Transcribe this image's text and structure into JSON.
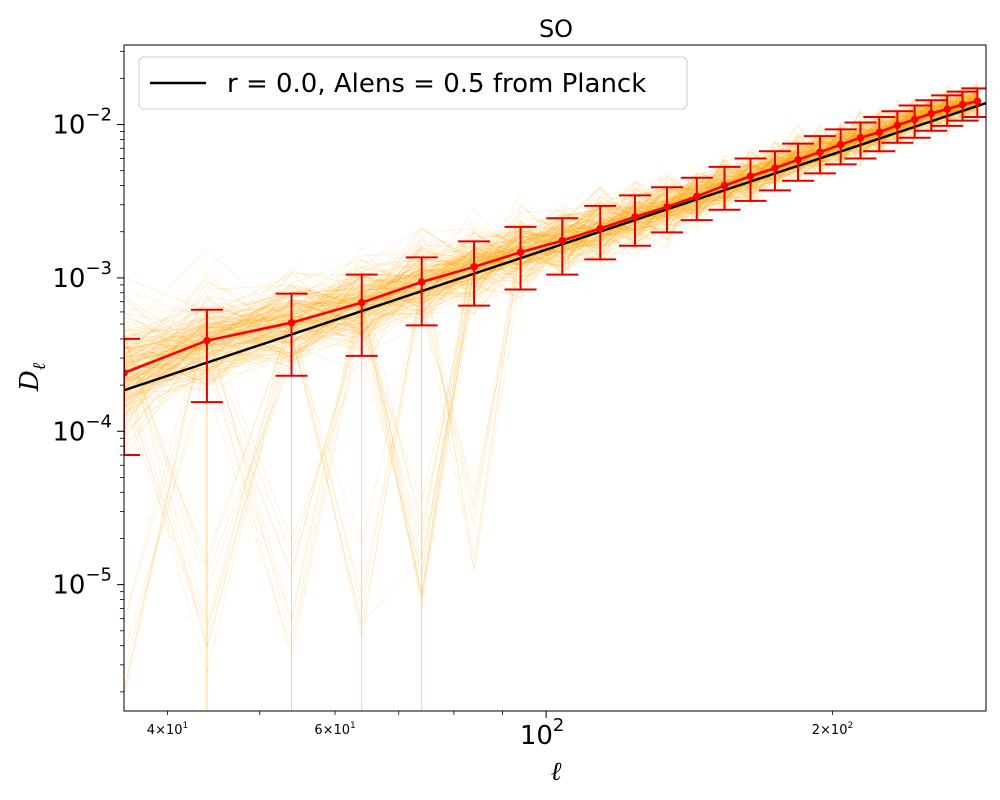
{
  "chart_data": {
    "type": "line",
    "title": "SO",
    "xlabel": "ℓ",
    "ylabel": "D",
    "ylabel_subscript": "ℓ",
    "x_scale": "log",
    "y_scale": "log",
    "xlim": [
      36,
      290
    ],
    "ylim": [
      1.5e-06,
      0.033
    ],
    "grid": false,
    "legend": {
      "location": "upper-left",
      "entries": [
        "r = 0.0, Alens = 0.5 from Planck"
      ]
    },
    "colors": {
      "theory": "#000000",
      "mean": "#ff0000",
      "errorbar": "#e00000",
      "realizations": "#ffa500"
    },
    "x_ticks_major": [
      {
        "value": 100,
        "base": "10",
        "exp": "2"
      }
    ],
    "x_ticks_minor_labeled": [
      {
        "value": 40,
        "mant": "4",
        "base": "10",
        "exp": "1"
      },
      {
        "value": 60,
        "mant": "6",
        "base": "10",
        "exp": "1"
      },
      {
        "value": 200,
        "mant": "2",
        "base": "10",
        "exp": "2"
      }
    ],
    "y_ticks_major": [
      {
        "value": 1e-05,
        "base": "10",
        "exp": "−5"
      },
      {
        "value": 0.0001,
        "base": "10",
        "exp": "−4"
      },
      {
        "value": 0.001,
        "base": "10",
        "exp": "−3"
      },
      {
        "value": 0.01,
        "base": "10",
        "exp": "−2"
      }
    ],
    "series": [
      {
        "name": "r = 0.0, Alens = 0.5 from Planck",
        "style": "line",
        "x": [
          36,
          290
        ],
        "y": [
          0.000185,
          0.0138
        ]
      },
      {
        "style": "errorbar",
        "x": [
          36,
          44,
          54,
          64,
          74,
          84,
          94,
          104,
          114,
          124,
          134,
          144,
          154,
          164,
          174,
          184,
          194,
          204,
          214,
          224,
          234,
          244,
          254,
          264,
          274,
          284
        ],
        "y": [
          0.00024,
          0.00039,
          0.00051,
          0.00069,
          0.00094,
          0.00118,
          0.00147,
          0.00175,
          0.0021,
          0.0025,
          0.0029,
          0.0034,
          0.004,
          0.0046,
          0.0052,
          0.0059,
          0.0066,
          0.0074,
          0.0082,
          0.0089,
          0.0099,
          0.0108,
          0.0118,
          0.0126,
          0.0135,
          0.0142
        ],
        "y_lower": [
          7e-05,
          0.000155,
          0.00023,
          0.00031,
          0.00049,
          0.00066,
          0.00084,
          0.00105,
          0.00132,
          0.00162,
          0.00198,
          0.00238,
          0.00278,
          0.00318,
          0.00372,
          0.0043,
          0.0048,
          0.0055,
          0.006,
          0.0067,
          0.0076,
          0.0082,
          0.0091,
          0.0098,
          0.0106,
          0.0112
        ],
        "y_upper": [
          0.0004,
          0.00062,
          0.00079,
          0.00105,
          0.00136,
          0.00173,
          0.00215,
          0.00245,
          0.00295,
          0.00345,
          0.0039,
          0.0045,
          0.0053,
          0.006,
          0.0067,
          0.0075,
          0.0084,
          0.0093,
          0.0103,
          0.0112,
          0.0122,
          0.0133,
          0.0144,
          0.0155,
          0.0164,
          0.0172
        ]
      }
    ]
  }
}
